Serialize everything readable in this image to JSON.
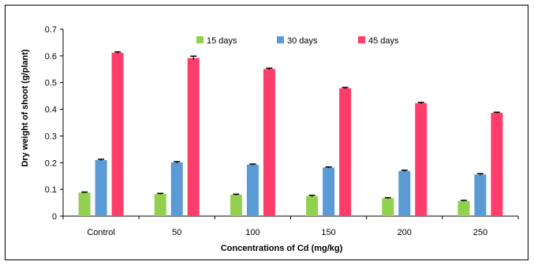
{
  "chart_data": {
    "type": "bar",
    "title": "",
    "xlabel": "Concentrations of Cd (mg/kg)",
    "ylabel": "Dry weight of shoot (g/plant)",
    "ylim": [
      0,
      0.7
    ],
    "yticks": [
      "0",
      "0.1",
      "0.2",
      "0.3",
      "0.4",
      "0.5",
      "0.6",
      "0.7"
    ],
    "categories": [
      "Control",
      "50",
      "100",
      "150",
      "200",
      "250"
    ],
    "grid": false,
    "legend": "top",
    "series": [
      {
        "name": "15 days",
        "color": "#92d050",
        "values": [
          0.088,
          0.083,
          0.08,
          0.075,
          0.067,
          0.057
        ],
        "errors": [
          0.002,
          0.002,
          0.002,
          0.003,
          0.002,
          0.002
        ]
      },
      {
        "name": "30 days",
        "color": "#5b9bd5",
        "values": [
          0.21,
          0.201,
          0.193,
          0.182,
          0.169,
          0.156
        ],
        "errors": [
          0.003,
          0.003,
          0.002,
          0.002,
          0.003,
          0.003
        ]
      },
      {
        "name": "45 days",
        "color": "#ff3d6b",
        "values": [
          0.612,
          0.592,
          0.551,
          0.479,
          0.423,
          0.387
        ],
        "errors": [
          0.003,
          0.007,
          0.003,
          0.003,
          0.003,
          0.002
        ]
      }
    ]
  }
}
